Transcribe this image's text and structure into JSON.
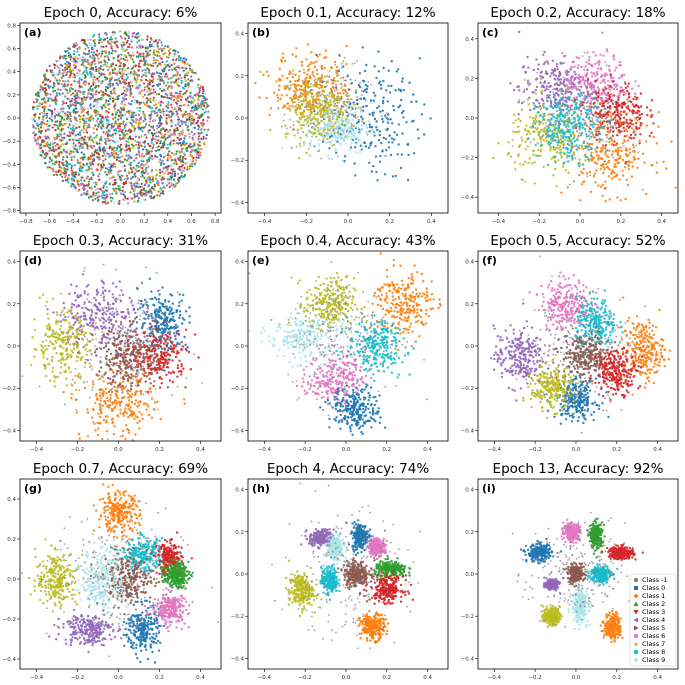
{
  "figure": {
    "description_free": true
  },
  "legend": {
    "entries": [
      {
        "label": "Class -1",
        "color": "#7f7f7f",
        "marker": "circle"
      },
      {
        "label": "Class 0",
        "color": "#1f77b4",
        "marker": "square"
      },
      {
        "label": "Class 1",
        "color": "#ff7f0e",
        "marker": "diamond"
      },
      {
        "label": "Class 2",
        "color": "#2ca02c",
        "marker": "triangle-up"
      },
      {
        "label": "Class 3",
        "color": "#d62728",
        "marker": "triangle-down"
      },
      {
        "label": "Class 4",
        "color": "#9467bd",
        "marker": "triangle-left"
      },
      {
        "label": "Class 5",
        "color": "#8c564b",
        "marker": "triangle-right"
      },
      {
        "label": "Class 6",
        "color": "#e377c2",
        "marker": "hexagon"
      },
      {
        "label": "Class 7",
        "color": "#bcbd22",
        "marker": "star"
      },
      {
        "label": "Class 8",
        "color": "#17becf",
        "marker": "circle"
      },
      {
        "label": "Class 9",
        "color": "#aee4ea",
        "marker": "diamond"
      }
    ]
  },
  "chart_data": [
    {
      "type": "scatter",
      "label": "(a)",
      "title": "Epoch 0, Accuracy: 6%",
      "epoch": 0,
      "accuracy_pct": 6,
      "xlim": [
        -0.85,
        0.85
      ],
      "ylim": [
        -0.82,
        0.82
      ],
      "xticks": [
        -0.8,
        -0.6,
        -0.4,
        -0.2,
        0.0,
        0.2,
        0.4,
        0.6,
        0.8
      ],
      "yticks": [
        -0.8,
        -0.6,
        -0.4,
        -0.2,
        0.0,
        0.2,
        0.4,
        0.6,
        0.8
      ],
      "layout": "disk",
      "disk_radius": 0.75,
      "clusters": []
    },
    {
      "type": "scatter",
      "label": "(b)",
      "title": "Epoch 0.1, Accuracy: 12%",
      "epoch": 0.1,
      "accuracy_pct": 12,
      "xlim": [
        -0.48,
        0.48
      ],
      "ylim": [
        -0.45,
        0.45
      ],
      "xticks": [
        -0.4,
        -0.2,
        0.0,
        0.2,
        0.4
      ],
      "yticks": [
        -0.4,
        -0.2,
        0.0,
        0.2,
        0.4
      ],
      "clusters": [
        {
          "class": "Class 0",
          "cx": 0.1,
          "cy": 0.0,
          "sx": 0.12,
          "sy": 0.13
        },
        {
          "class": "Class 1",
          "cx": -0.18,
          "cy": 0.15,
          "sx": 0.09,
          "sy": 0.08
        },
        {
          "class": "Class -1",
          "cx": -0.1,
          "cy": 0.05,
          "sx": 0.1,
          "sy": 0.1
        },
        {
          "class": "Class 9",
          "cx": -0.05,
          "cy": -0.05,
          "sx": 0.08,
          "sy": 0.06
        },
        {
          "class": "Class 7",
          "cx": -0.15,
          "cy": 0.05,
          "sx": 0.08,
          "sy": 0.08
        }
      ]
    },
    {
      "type": "scatter",
      "label": "(c)",
      "title": "Epoch 0.2, Accuracy: 18%",
      "epoch": 0.2,
      "accuracy_pct": 18,
      "xlim": [
        -0.5,
        0.48
      ],
      "ylim": [
        -0.48,
        0.48
      ],
      "xticks": [
        -0.4,
        -0.2,
        0.0,
        0.2,
        0.4
      ],
      "yticks": [
        -0.4,
        -0.2,
        0.0,
        0.2,
        0.4
      ],
      "clusters": [
        {
          "class": "Class 4",
          "cx": -0.12,
          "cy": 0.15,
          "sx": 0.09,
          "sy": 0.08
        },
        {
          "class": "Class 6",
          "cx": 0.08,
          "cy": 0.18,
          "sx": 0.08,
          "sy": 0.07
        },
        {
          "class": "Class 3",
          "cx": 0.18,
          "cy": 0.02,
          "sx": 0.07,
          "sy": 0.08
        },
        {
          "class": "Class 7",
          "cx": -0.15,
          "cy": -0.1,
          "sx": 0.1,
          "sy": 0.09
        },
        {
          "class": "Class 1",
          "cx": 0.15,
          "cy": -0.18,
          "sx": 0.1,
          "sy": 0.1
        },
        {
          "class": "Class -1",
          "cx": 0.0,
          "cy": 0.0,
          "sx": 0.12,
          "sy": 0.12
        },
        {
          "class": "Class 8",
          "cx": -0.05,
          "cy": -0.05,
          "sx": 0.08,
          "sy": 0.08
        }
      ]
    },
    {
      "type": "scatter",
      "label": "(d)",
      "title": "Epoch 0.3, Accuracy: 31%",
      "epoch": 0.3,
      "accuracy_pct": 31,
      "xlim": [
        -0.48,
        0.5
      ],
      "ylim": [
        -0.45,
        0.45
      ],
      "xticks": [
        -0.4,
        -0.2,
        0.0,
        0.2,
        0.4
      ],
      "yticks": [
        -0.4,
        -0.2,
        0.0,
        0.2,
        0.4
      ],
      "clusters": [
        {
          "class": "Class 4",
          "cx": -0.08,
          "cy": 0.15,
          "sx": 0.11,
          "sy": 0.08
        },
        {
          "class": "Class 7",
          "cx": -0.28,
          "cy": 0.0,
          "sx": 0.07,
          "sy": 0.08
        },
        {
          "class": "Class 0",
          "cx": 0.22,
          "cy": 0.12,
          "sx": 0.06,
          "sy": 0.07
        },
        {
          "class": "Class 3",
          "cx": 0.2,
          "cy": -0.05,
          "sx": 0.07,
          "sy": 0.06
        },
        {
          "class": "Class 1",
          "cx": 0.0,
          "cy": -0.28,
          "sx": 0.09,
          "sy": 0.08
        },
        {
          "class": "Class 5",
          "cx": 0.05,
          "cy": -0.05,
          "sx": 0.08,
          "sy": 0.07
        },
        {
          "class": "Class -1",
          "cx": 0.0,
          "cy": 0.0,
          "sx": 0.15,
          "sy": 0.15
        }
      ]
    },
    {
      "type": "scatter",
      "label": "(e)",
      "title": "Epoch 0.4, Accuracy: 43%",
      "epoch": 0.4,
      "accuracy_pct": 43,
      "xlim": [
        -0.48,
        0.5
      ],
      "ylim": [
        -0.45,
        0.45
      ],
      "xticks": [
        -0.4,
        -0.2,
        0.0,
        0.2,
        0.4
      ],
      "yticks": [
        -0.4,
        -0.2,
        0.0,
        0.2,
        0.4
      ],
      "clusters": [
        {
          "class": "Class 1",
          "cx": 0.28,
          "cy": 0.2,
          "sx": 0.07,
          "sy": 0.08
        },
        {
          "class": "Class 9",
          "cx": -0.2,
          "cy": 0.05,
          "sx": 0.09,
          "sy": 0.06
        },
        {
          "class": "Class 8",
          "cx": 0.15,
          "cy": 0.0,
          "sx": 0.07,
          "sy": 0.06
        },
        {
          "class": "Class 6",
          "cx": -0.05,
          "cy": -0.15,
          "sx": 0.07,
          "sy": 0.06
        },
        {
          "class": "Class 0",
          "cx": 0.05,
          "cy": -0.3,
          "sx": 0.06,
          "sy": 0.05
        },
        {
          "class": "Class 7",
          "cx": -0.08,
          "cy": 0.2,
          "sx": 0.06,
          "sy": 0.06
        },
        {
          "class": "Class -1",
          "cx": 0.0,
          "cy": 0.05,
          "sx": 0.14,
          "sy": 0.14
        }
      ]
    },
    {
      "type": "scatter",
      "label": "(f)",
      "title": "Epoch 0.5, Accuracy: 52%",
      "epoch": 0.5,
      "accuracy_pct": 52,
      "xlim": [
        -0.48,
        0.5
      ],
      "ylim": [
        -0.45,
        0.45
      ],
      "xticks": [
        -0.4,
        -0.2,
        0.0,
        0.2,
        0.4
      ],
      "yticks": [
        -0.4,
        -0.2,
        0.0,
        0.2,
        0.4
      ],
      "clusters": [
        {
          "class": "Class 1",
          "cx": 0.33,
          "cy": -0.02,
          "sx": 0.05,
          "sy": 0.07
        },
        {
          "class": "Class 4",
          "cx": -0.28,
          "cy": -0.05,
          "sx": 0.06,
          "sy": 0.07
        },
        {
          "class": "Class 6",
          "cx": -0.05,
          "cy": 0.2,
          "sx": 0.06,
          "sy": 0.06
        },
        {
          "class": "Class 8",
          "cx": 0.1,
          "cy": 0.1,
          "sx": 0.05,
          "sy": 0.06
        },
        {
          "class": "Class 0",
          "cx": 0.0,
          "cy": -0.25,
          "sx": 0.05,
          "sy": 0.05
        },
        {
          "class": "Class 5",
          "cx": 0.05,
          "cy": -0.05,
          "sx": 0.06,
          "sy": 0.05
        },
        {
          "class": "Class 7",
          "cx": -0.12,
          "cy": -0.2,
          "sx": 0.05,
          "sy": 0.05
        },
        {
          "class": "Class 3",
          "cx": 0.2,
          "cy": -0.12,
          "sx": 0.05,
          "sy": 0.05
        },
        {
          "class": "Class -1",
          "cx": 0.0,
          "cy": 0.0,
          "sx": 0.14,
          "sy": 0.14
        }
      ]
    },
    {
      "type": "scatter",
      "label": "(g)",
      "title": "Epoch 0.7, Accuracy: 69%",
      "epoch": 0.7,
      "accuracy_pct": 69,
      "xlim": [
        -0.48,
        0.5
      ],
      "ylim": [
        -0.45,
        0.5
      ],
      "xticks": [
        -0.4,
        -0.2,
        0.0,
        0.2,
        0.4
      ],
      "yticks": [
        -0.4,
        -0.2,
        0.0,
        0.2,
        0.4
      ],
      "clusters": [
        {
          "class": "Class 1",
          "cx": 0.0,
          "cy": 0.33,
          "sx": 0.05,
          "sy": 0.05
        },
        {
          "class": "Class 7",
          "cx": -0.3,
          "cy": 0.0,
          "sx": 0.05,
          "sy": 0.07
        },
        {
          "class": "Class 8",
          "cx": 0.12,
          "cy": 0.12,
          "sx": 0.05,
          "sy": 0.04
        },
        {
          "class": "Class 3",
          "cx": 0.25,
          "cy": 0.1,
          "sx": 0.03,
          "sy": 0.04
        },
        {
          "class": "Class 5",
          "cx": 0.05,
          "cy": 0.0,
          "sx": 0.06,
          "sy": 0.06
        },
        {
          "class": "Class 4",
          "cx": -0.15,
          "cy": -0.25,
          "sx": 0.06,
          "sy": 0.04
        },
        {
          "class": "Class 0",
          "cx": 0.12,
          "cy": -0.25,
          "sx": 0.04,
          "sy": 0.06
        },
        {
          "class": "Class 6",
          "cx": 0.25,
          "cy": -0.15,
          "sx": 0.04,
          "sy": 0.04
        },
        {
          "class": "Class 2",
          "cx": 0.28,
          "cy": 0.02,
          "sx": 0.03,
          "sy": 0.03
        },
        {
          "class": "Class 9",
          "cx": -0.08,
          "cy": 0.0,
          "sx": 0.05,
          "sy": 0.08
        },
        {
          "class": "Class -1",
          "cx": 0.0,
          "cy": 0.0,
          "sx": 0.16,
          "sy": 0.16
        }
      ]
    },
    {
      "type": "scatter",
      "label": "(h)",
      "title": "Epoch 4, Accuracy: 74%",
      "epoch": 4,
      "accuracy_pct": 74,
      "xlim": [
        -0.48,
        0.5
      ],
      "ylim": [
        -0.45,
        0.45
      ],
      "xticks": [
        -0.4,
        -0.2,
        0.0,
        0.2,
        0.4
      ],
      "yticks": [
        -0.4,
        -0.2,
        0.0,
        0.2,
        0.4
      ],
      "clusters": [
        {
          "class": "Class 4",
          "cx": -0.12,
          "cy": 0.17,
          "sx": 0.03,
          "sy": 0.02
        },
        {
          "class": "Class 0",
          "cx": 0.07,
          "cy": 0.18,
          "sx": 0.02,
          "sy": 0.03
        },
        {
          "class": "Class 7",
          "cx": -0.22,
          "cy": -0.08,
          "sx": 0.03,
          "sy": 0.04
        },
        {
          "class": "Class 8",
          "cx": -0.08,
          "cy": -0.03,
          "sx": 0.02,
          "sy": 0.03
        },
        {
          "class": "Class 5",
          "cx": 0.05,
          "cy": 0.0,
          "sx": 0.03,
          "sy": 0.03
        },
        {
          "class": "Class 2",
          "cx": 0.22,
          "cy": 0.02,
          "sx": 0.04,
          "sy": 0.02
        },
        {
          "class": "Class 3",
          "cx": 0.2,
          "cy": -0.07,
          "sx": 0.04,
          "sy": 0.03
        },
        {
          "class": "Class 9",
          "cx": -0.05,
          "cy": 0.12,
          "sx": 0.02,
          "sy": 0.03
        },
        {
          "class": "Class 1",
          "cx": 0.13,
          "cy": -0.25,
          "sx": 0.03,
          "sy": 0.03
        },
        {
          "class": "Class 6",
          "cx": 0.15,
          "cy": 0.13,
          "sx": 0.02,
          "sy": 0.02
        },
        {
          "class": "Class -1",
          "cx": 0.0,
          "cy": 0.0,
          "sx": 0.15,
          "sy": 0.15
        }
      ]
    },
    {
      "type": "scatter",
      "label": "(i)",
      "title": "Epoch 13, Accuracy: 92%",
      "epoch": 13,
      "accuracy_pct": 92,
      "xlim": [
        -0.48,
        0.5
      ],
      "ylim": [
        -0.45,
        0.45
      ],
      "xticks": [
        -0.4,
        -0.2,
        0.0,
        0.2,
        0.4
      ],
      "yticks": [
        -0.4,
        -0.2,
        0.0,
        0.2,
        0.4
      ],
      "legend_location": "lower-right",
      "clusters": [
        {
          "class": "Class 6",
          "cx": -0.02,
          "cy": 0.2,
          "sx": 0.02,
          "sy": 0.02
        },
        {
          "class": "Class 2",
          "cx": 0.1,
          "cy": 0.18,
          "sx": 0.015,
          "sy": 0.03
        },
        {
          "class": "Class 0",
          "cx": -0.18,
          "cy": 0.1,
          "sx": 0.03,
          "sy": 0.02
        },
        {
          "class": "Class 3",
          "cx": 0.22,
          "cy": 0.1,
          "sx": 0.03,
          "sy": 0.015
        },
        {
          "class": "Class 5",
          "cx": 0.0,
          "cy": 0.0,
          "sx": 0.02,
          "sy": 0.02
        },
        {
          "class": "Class 8",
          "cx": 0.12,
          "cy": 0.0,
          "sx": 0.025,
          "sy": 0.02
        },
        {
          "class": "Class 4",
          "cx": -0.12,
          "cy": -0.05,
          "sx": 0.015,
          "sy": 0.01
        },
        {
          "class": "Class 9",
          "cx": 0.02,
          "cy": -0.15,
          "sx": 0.02,
          "sy": 0.04
        },
        {
          "class": "Class 7",
          "cx": -0.12,
          "cy": -0.2,
          "sx": 0.02,
          "sy": 0.02
        },
        {
          "class": "Class 1",
          "cx": 0.18,
          "cy": -0.25,
          "sx": 0.02,
          "sy": 0.03
        },
        {
          "class": "Class -1",
          "cx": 0.0,
          "cy": 0.0,
          "sx": 0.12,
          "sy": 0.12
        }
      ]
    }
  ]
}
